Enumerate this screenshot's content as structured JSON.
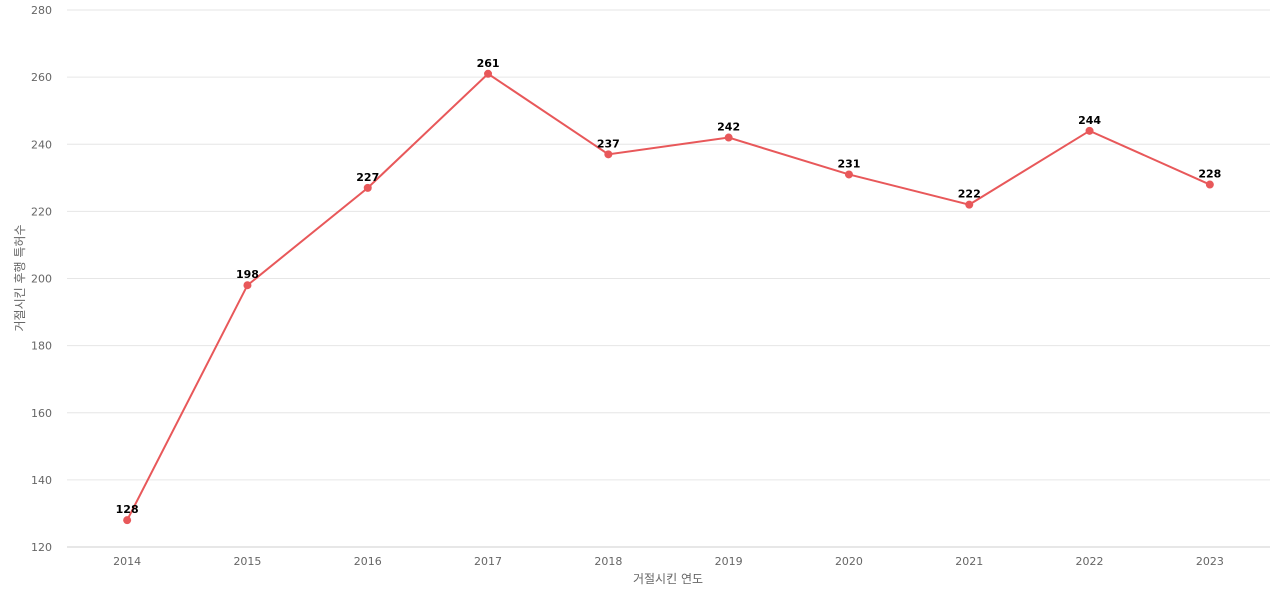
{
  "chart_data": {
    "type": "line",
    "title": "",
    "xlabel": "거절시킨 연도",
    "ylabel": "거절시킨 후행 특허수",
    "categories": [
      "2014",
      "2015",
      "2016",
      "2017",
      "2018",
      "2019",
      "2020",
      "2021",
      "2022",
      "2023"
    ],
    "series": [
      {
        "values": [
          128,
          198,
          227,
          261,
          237,
          242,
          231,
          222,
          244,
          228
        ],
        "color": "#e8585a"
      }
    ],
    "ylim": [
      120,
      280
    ],
    "yticks": [
      "120",
      "140",
      "160",
      "180",
      "200",
      "220",
      "240",
      "260",
      "280"
    ],
    "grid": true,
    "data_labels": true
  }
}
